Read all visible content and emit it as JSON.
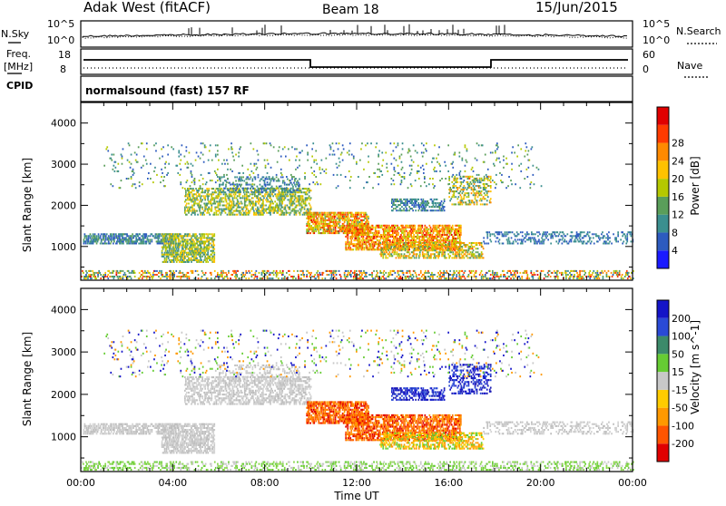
{
  "header": {
    "station": "Adak West (fitACF)",
    "beam": "Beam 18",
    "date": "15/Jun/2015"
  },
  "sky_panel": {
    "left_label": "N.Sky",
    "right_label": "N.Search",
    "left_ticks": [
      "10^5",
      "10^0"
    ],
    "right_ticks": [
      "10^5",
      "10^0"
    ]
  },
  "freq_panel": {
    "left_label_1": "Freq.",
    "left_label_2": "[MHz]",
    "right_label": "Nave",
    "left_ticks": [
      "18",
      "8"
    ],
    "right_ticks": [
      "60",
      "0"
    ]
  },
  "cpid": {
    "label": "CPID",
    "value": "normalsound (fast) 157 RF"
  },
  "chart_data": [
    {
      "type": "heatmap",
      "name": "power",
      "ylabel": "Slant Range [km]",
      "xlabel": "",
      "xlim": [
        0,
        24
      ],
      "ylim": [
        180,
        4500
      ],
      "x_tick_labels": [
        "00:00",
        "04:00",
        "08:00",
        "12:00",
        "16:00",
        "20:00",
        "00:00"
      ],
      "y_tick_labels": [
        "1000",
        "2000",
        "3000",
        "4000"
      ],
      "colorbar": {
        "label": "Power [dB]",
        "ticks": [
          "4",
          "8",
          "12",
          "16",
          "20",
          "24",
          "28"
        ],
        "colors": [
          "#1a1aff",
          "#2d5bbf",
          "#3b8f8f",
          "#5a9e5a",
          "#b5c800",
          "#ffc200",
          "#ff8a00",
          "#ff3b00",
          "#e00000"
        ]
      }
    },
    {
      "type": "heatmap",
      "name": "velocity",
      "ylabel": "Slant Range [km]",
      "xlabel": "Time UT",
      "xlim": [
        0,
        24
      ],
      "ylim": [
        180,
        4500
      ],
      "x_tick_labels": [
        "00:00",
        "04:00",
        "08:00",
        "12:00",
        "16:00",
        "20:00",
        "00:00"
      ],
      "y_tick_labels": [
        "1000",
        "2000",
        "3000",
        "4000"
      ],
      "colorbar": {
        "label": "Velocity [m s^-1]",
        "ticks": [
          "200",
          "100",
          "50",
          "15",
          "-15",
          "-50",
          "-100",
          "-200"
        ],
        "colors": [
          "#1414c8",
          "#2a4ad6",
          "#3c8a6a",
          "#66cc33",
          "#c8c8c8",
          "#ffcc00",
          "#ff9900",
          "#ff5500",
          "#e00000"
        ]
      }
    }
  ]
}
